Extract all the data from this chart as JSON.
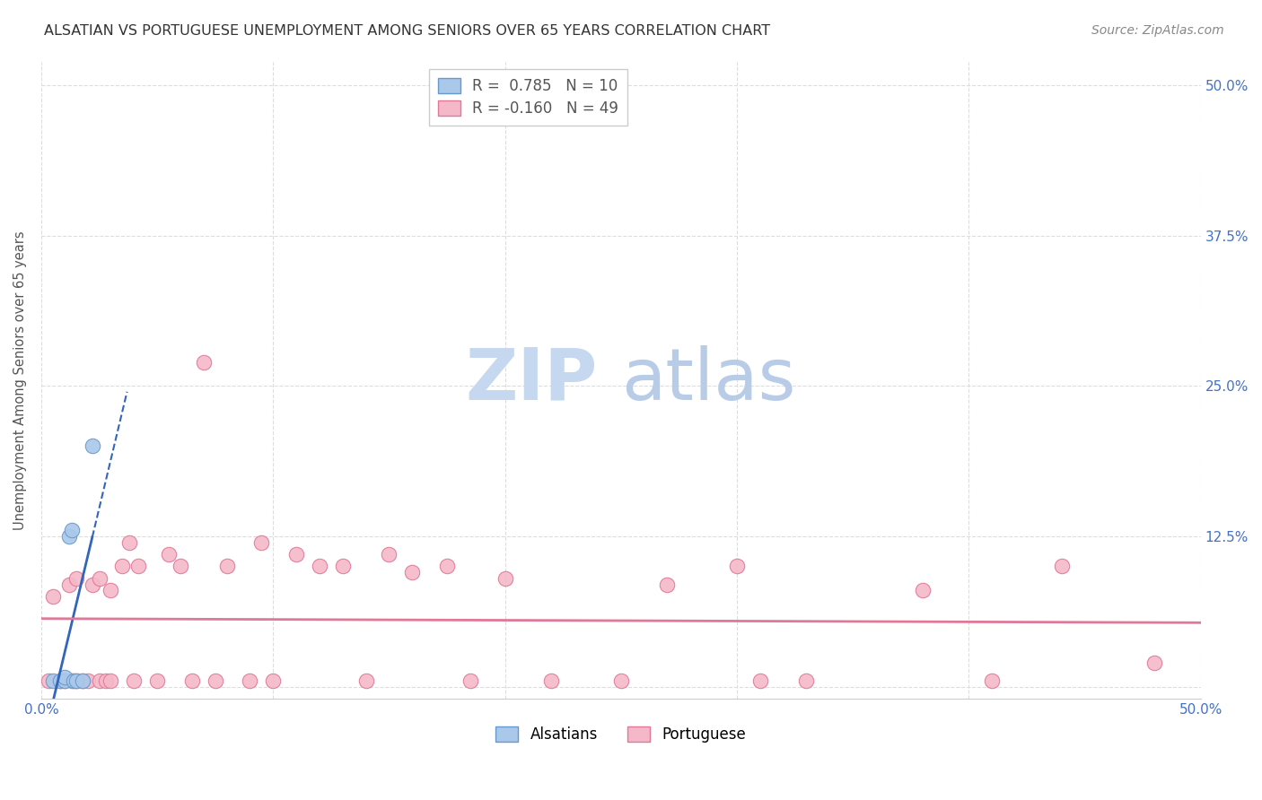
{
  "title": "ALSATIAN VS PORTUGUESE UNEMPLOYMENT AMONG SENIORS OVER 65 YEARS CORRELATION CHART",
  "source": "Source: ZipAtlas.com",
  "ylabel": "Unemployment Among Seniors over 65 years",
  "xlim": [
    0.0,
    0.5
  ],
  "ylim": [
    -0.01,
    0.52
  ],
  "background_color": "#ffffff",
  "grid_color": "#dddddd",
  "alsatian_color": "#aac8ea",
  "alsatian_edge_color": "#6699cc",
  "portuguese_color": "#f5b8c8",
  "portuguese_edge_color": "#e07898",
  "alsatian_line_color": "#3366bb",
  "portuguese_line_color": "#e07898",
  "alsatian_x": [
    0.005,
    0.008,
    0.01,
    0.01,
    0.012,
    0.013,
    0.014,
    0.015,
    0.018,
    0.022
  ],
  "alsatian_y": [
    0.005,
    0.005,
    0.005,
    0.008,
    0.125,
    0.13,
    0.005,
    0.005,
    0.005,
    0.2
  ],
  "portuguese_x": [
    0.003,
    0.005,
    0.008,
    0.01,
    0.012,
    0.013,
    0.015,
    0.015,
    0.018,
    0.02,
    0.022,
    0.025,
    0.025,
    0.028,
    0.03,
    0.03,
    0.035,
    0.038,
    0.04,
    0.042,
    0.05,
    0.055,
    0.06,
    0.065,
    0.07,
    0.075,
    0.08,
    0.09,
    0.095,
    0.1,
    0.11,
    0.12,
    0.13,
    0.14,
    0.15,
    0.16,
    0.175,
    0.185,
    0.2,
    0.22,
    0.25,
    0.27,
    0.3,
    0.31,
    0.33,
    0.38,
    0.41,
    0.44,
    0.48
  ],
  "portuguese_y": [
    0.005,
    0.075,
    0.005,
    0.005,
    0.085,
    0.005,
    0.005,
    0.09,
    0.005,
    0.005,
    0.085,
    0.005,
    0.09,
    0.005,
    0.08,
    0.005,
    0.1,
    0.12,
    0.005,
    0.1,
    0.005,
    0.11,
    0.1,
    0.005,
    0.27,
    0.005,
    0.1,
    0.005,
    0.12,
    0.005,
    0.11,
    0.1,
    0.1,
    0.005,
    0.11,
    0.095,
    0.1,
    0.005,
    0.09,
    0.005,
    0.005,
    0.085,
    0.1,
    0.005,
    0.005,
    0.08,
    0.005,
    0.1,
    0.02
  ],
  "watermark_zip": "ZIP",
  "watermark_atlas": "atlas",
  "watermark_zip_color": "#c5d8f0",
  "watermark_atlas_color": "#b8cce8",
  "marker_size": 140
}
